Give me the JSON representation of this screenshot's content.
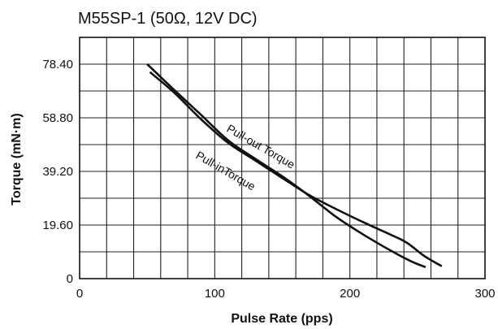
{
  "chart_data": {
    "type": "line",
    "title": "M55SP-1 (50Ω, 12V DC)",
    "xlabel": "Pulse Rate (pps)",
    "ylabel": "Torque (mN·m)",
    "xlim": [
      0,
      300
    ],
    "ylim": [
      0,
      88.2
    ],
    "x_ticks": [
      {
        "value": 0,
        "label": "0"
      },
      {
        "value": 100,
        "label": "100"
      },
      {
        "value": 200,
        "label": "200"
      },
      {
        "value": 300,
        "label": "300"
      }
    ],
    "y_ticks": [
      {
        "value": 0,
        "label": "0"
      },
      {
        "value": 19.6,
        "label": "19.60"
      },
      {
        "value": 39.2,
        "label": "39.20"
      },
      {
        "value": 58.8,
        "label": "58.80"
      },
      {
        "value": 78.4,
        "label": "78.40"
      }
    ],
    "grid": true,
    "x_grid_step": 20,
    "y_grid_step": 9.8,
    "series": [
      {
        "name": "Pull-out Torque",
        "color": "#111111",
        "x": [
          52,
          70,
          90,
          110,
          130,
          150,
          170,
          190,
          210,
          230,
          242,
          255,
          268
        ],
        "y": [
          75.5,
          68,
          58.2,
          49.6,
          43.2,
          36.8,
          30.5,
          25.4,
          20.6,
          16.1,
          13.2,
          8.3,
          4.5
        ]
      },
      {
        "name": "Pull-inTorque",
        "color": "#111111",
        "x": [
          50,
          70,
          90,
          110,
          130,
          150,
          170,
          190,
          210,
          230,
          245,
          256
        ],
        "y": [
          78.4,
          69,
          59.8,
          50.5,
          43.8,
          37.4,
          30.2,
          22.5,
          16.1,
          10.3,
          6.4,
          4.2
        ]
      }
    ]
  }
}
